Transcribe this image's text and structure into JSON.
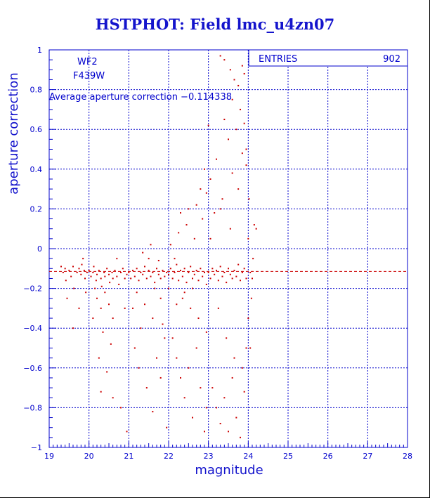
{
  "chart_data": {
    "type": "scatter",
    "title": "HSTPHOT: Field lmc_u4zn07",
    "xlabel": "magnitude",
    "ylabel": "aperture correction",
    "xlim": [
      19,
      28
    ],
    "ylim": [
      -1,
      1
    ],
    "x_ticks": [
      "19",
      "20",
      "21",
      "22",
      "23",
      "24",
      "25",
      "26",
      "27",
      "28"
    ],
    "y_ticks": [
      "1",
      "0.8",
      "0.6",
      "0.4",
      "0.2",
      "0",
      "−0.2",
      "−0.4",
      "−0.6",
      "−0.8",
      "−1"
    ],
    "grid": true,
    "annotations": {
      "chip": "WF2",
      "filter": "F439W",
      "average_text": "Average aperture correction −0.114338"
    },
    "stats": {
      "label": "ENTRIES",
      "value": "902"
    },
    "average_line": -0.114338,
    "series": [
      {
        "color": "#cc0000",
        "points": [
          [
            19.3,
            -0.09
          ],
          [
            19.35,
            -0.12
          ],
          [
            19.4,
            -0.1
          ],
          [
            19.42,
            -0.16
          ],
          [
            19.5,
            -0.11
          ],
          [
            19.55,
            -0.14
          ],
          [
            19.6,
            -0.09
          ],
          [
            19.62,
            -0.2
          ],
          [
            19.7,
            -0.12
          ],
          [
            19.75,
            -0.1
          ],
          [
            19.8,
            -0.13
          ],
          [
            19.82,
            -0.08
          ],
          [
            19.88,
            -0.11
          ],
          [
            19.9,
            -0.15
          ],
          [
            19.95,
            -0.12
          ],
          [
            19.6,
            -0.4
          ],
          [
            19.75,
            -0.3
          ],
          [
            19.85,
            -0.05
          ],
          [
            19.92,
            -0.22
          ],
          [
            19.45,
            -0.25
          ],
          [
            20.0,
            -0.11
          ],
          [
            20.05,
            -0.14
          ],
          [
            20.1,
            -0.12
          ],
          [
            20.12,
            -0.09
          ],
          [
            20.18,
            -0.16
          ],
          [
            20.2,
            -0.13
          ],
          [
            20.25,
            -0.11
          ],
          [
            20.3,
            -0.15
          ],
          [
            20.32,
            -0.19
          ],
          [
            20.38,
            -0.12
          ],
          [
            20.4,
            -0.14
          ],
          [
            20.45,
            -0.1
          ],
          [
            20.5,
            -0.13
          ],
          [
            20.52,
            -0.17
          ],
          [
            20.58,
            -0.12
          ],
          [
            20.6,
            -0.15
          ],
          [
            20.65,
            -0.11
          ],
          [
            20.7,
            -0.14
          ],
          [
            20.75,
            -0.18
          ],
          [
            20.8,
            -0.12
          ],
          [
            20.85,
            -0.1
          ],
          [
            20.9,
            -0.15
          ],
          [
            20.95,
            -0.13
          ],
          [
            20.2,
            -0.25
          ],
          [
            20.3,
            -0.3
          ],
          [
            20.4,
            -0.22
          ],
          [
            20.5,
            -0.28
          ],
          [
            20.6,
            -0.35
          ],
          [
            20.35,
            -0.42
          ],
          [
            20.15,
            -0.2
          ],
          [
            20.25,
            -0.55
          ],
          [
            20.3,
            -0.72
          ],
          [
            20.45,
            -0.62
          ],
          [
            20.6,
            -0.75
          ],
          [
            20.8,
            -0.8
          ],
          [
            20.95,
            -0.92
          ],
          [
            20.1,
            -0.35
          ],
          [
            20.7,
            -0.05
          ],
          [
            20.9,
            -0.3
          ],
          [
            20.55,
            -0.48
          ],
          [
            21.0,
            -0.12
          ],
          [
            21.05,
            -0.15
          ],
          [
            21.1,
            -0.11
          ],
          [
            21.15,
            -0.14
          ],
          [
            21.2,
            -0.1
          ],
          [
            21.25,
            -0.16
          ],
          [
            21.3,
            -0.12
          ],
          [
            21.35,
            -0.13
          ],
          [
            21.4,
            -0.09
          ],
          [
            21.45,
            -0.15
          ],
          [
            21.5,
            -0.11
          ],
          [
            21.55,
            -0.14
          ],
          [
            21.6,
            -0.12
          ],
          [
            21.65,
            -0.17
          ],
          [
            21.7,
            -0.1
          ],
          [
            21.75,
            -0.13
          ],
          [
            21.8,
            -0.15
          ],
          [
            21.85,
            -0.11
          ],
          [
            21.9,
            -0.14
          ],
          [
            21.95,
            -0.12
          ],
          [
            21.1,
            -0.3
          ],
          [
            21.2,
            -0.22
          ],
          [
            21.3,
            -0.4
          ],
          [
            21.4,
            -0.28
          ],
          [
            21.5,
            -0.05
          ],
          [
            21.6,
            -0.35
          ],
          [
            21.7,
            -0.55
          ],
          [
            21.8,
            -0.25
          ],
          [
            21.9,
            -0.45
          ],
          [
            21.25,
            -0.6
          ],
          [
            21.45,
            -0.7
          ],
          [
            21.6,
            -0.82
          ],
          [
            21.8,
            -0.65
          ],
          [
            21.95,
            -0.9
          ],
          [
            21.35,
            -0.02
          ],
          [
            21.55,
            0.02
          ],
          [
            21.75,
            -0.06
          ],
          [
            21.15,
            -0.5
          ],
          [
            21.85,
            -0.38
          ],
          [
            21.65,
            -0.2
          ],
          [
            22.0,
            -0.13
          ],
          [
            22.05,
            -0.1
          ],
          [
            22.1,
            -0.15
          ],
          [
            22.15,
            -0.12
          ],
          [
            22.2,
            -0.08
          ],
          [
            22.25,
            -0.16
          ],
          [
            22.3,
            -0.11
          ],
          [
            22.35,
            -0.14
          ],
          [
            22.4,
            -0.1
          ],
          [
            22.45,
            -0.17
          ],
          [
            22.5,
            -0.12
          ],
          [
            22.55,
            -0.09
          ],
          [
            22.6,
            -0.15
          ],
          [
            22.65,
            -0.13
          ],
          [
            22.7,
            -0.11
          ],
          [
            22.75,
            -0.16
          ],
          [
            22.8,
            -0.1
          ],
          [
            22.85,
            -0.14
          ],
          [
            22.9,
            -0.12
          ],
          [
            22.95,
            -0.18
          ],
          [
            22.05,
            0.02
          ],
          [
            22.15,
            -0.05
          ],
          [
            22.25,
            0.08
          ],
          [
            22.35,
            -0.25
          ],
          [
            22.45,
            0.12
          ],
          [
            22.55,
            -0.3
          ],
          [
            22.65,
            0.05
          ],
          [
            22.75,
            -0.35
          ],
          [
            22.85,
            0.15
          ],
          [
            22.95,
            -0.42
          ],
          [
            22.1,
            -0.45
          ],
          [
            22.2,
            -0.55
          ],
          [
            22.3,
            -0.65
          ],
          [
            22.4,
            -0.75
          ],
          [
            22.5,
            -0.6
          ],
          [
            22.6,
            -0.85
          ],
          [
            22.7,
            -0.5
          ],
          [
            22.8,
            -0.7
          ],
          [
            22.9,
            -0.92
          ],
          [
            22.95,
            -0.8
          ],
          [
            22.3,
            0.18
          ],
          [
            22.5,
            0.2
          ],
          [
            22.7,
            0.22
          ],
          [
            22.8,
            0.3
          ],
          [
            22.9,
            0.4
          ],
          [
            22.95,
            0.28
          ],
          [
            22.6,
            -0.2
          ],
          [
            22.4,
            -0.22
          ],
          [
            22.2,
            -0.28
          ],
          [
            22.0,
            -0.2
          ],
          [
            23.0,
            -0.12
          ],
          [
            23.05,
            -0.15
          ],
          [
            23.1,
            -0.1
          ],
          [
            23.15,
            -0.13
          ],
          [
            23.2,
            -0.11
          ],
          [
            23.25,
            -0.16
          ],
          [
            23.3,
            -0.09
          ],
          [
            23.35,
            -0.14
          ],
          [
            23.4,
            -0.12
          ],
          [
            23.45,
            -0.17
          ],
          [
            23.5,
            -0.1
          ],
          [
            23.55,
            -0.13
          ],
          [
            23.6,
            -0.15
          ],
          [
            23.65,
            -0.11
          ],
          [
            23.7,
            -0.14
          ],
          [
            23.75,
            -0.08
          ],
          [
            23.8,
            -0.16
          ],
          [
            23.85,
            -0.12
          ],
          [
            23.9,
            -0.1
          ],
          [
            23.95,
            -0.15
          ],
          [
            23.05,
            0.05
          ],
          [
            23.15,
            0.18
          ],
          [
            23.25,
            -0.3
          ],
          [
            23.35,
            0.25
          ],
          [
            23.45,
            -0.45
          ],
          [
            23.55,
            0.1
          ],
          [
            23.65,
            -0.55
          ],
          [
            23.75,
            0.3
          ],
          [
            23.85,
            -0.6
          ],
          [
            23.95,
            0.42
          ],
          [
            23.1,
            -0.7
          ],
          [
            23.2,
            -0.8
          ],
          [
            23.3,
            -0.88
          ],
          [
            23.4,
            -0.75
          ],
          [
            23.5,
            -0.92
          ],
          [
            23.6,
            -0.65
          ],
          [
            23.7,
            -0.85
          ],
          [
            23.8,
            -0.95
          ],
          [
            23.9,
            -0.72
          ],
          [
            23.95,
            -0.5
          ],
          [
            23.3,
            0.97
          ],
          [
            23.4,
            0.95
          ],
          [
            23.55,
            0.9
          ],
          [
            23.65,
            0.85
          ],
          [
            23.75,
            0.82
          ],
          [
            23.85,
            0.92
          ],
          [
            23.6,
            0.75
          ],
          [
            23.4,
            0.65
          ],
          [
            23.9,
            0.63
          ],
          [
            23.95,
            0.5
          ],
          [
            23.0,
            0.62
          ],
          [
            23.05,
            0.35
          ],
          [
            23.2,
            0.45
          ],
          [
            23.7,
            0.6
          ],
          [
            23.8,
            0.7
          ],
          [
            23.9,
            0.88
          ],
          [
            23.5,
            0.55
          ],
          [
            23.85,
            0.48
          ],
          [
            23.6,
            0.38
          ],
          [
            23.3,
            0.2
          ],
          [
            24.0,
            0.05
          ],
          [
            24.05,
            -0.12
          ],
          [
            24.1,
            -0.15
          ],
          [
            24.15,
            0.12
          ],
          [
            24.2,
            0.1
          ],
          [
            24.0,
            -0.35
          ],
          [
            24.05,
            -0.5
          ],
          [
            24.02,
            0.25
          ],
          [
            24.08,
            -0.25
          ],
          [
            24.12,
            -0.05
          ]
        ]
      }
    ]
  }
}
